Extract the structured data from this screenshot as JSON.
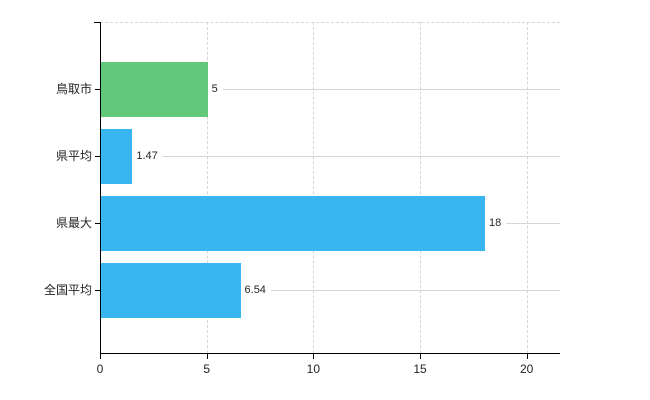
{
  "chart_data": {
    "type": "bar",
    "orientation": "horizontal",
    "title": "",
    "categories": [
      "鳥取市",
      "県平均",
      "県最大",
      "全国平均"
    ],
    "values": [
      5,
      1.47,
      18,
      6.54
    ],
    "value_labels": [
      "5",
      "1.47",
      "18",
      "6.54"
    ],
    "bar_colors": [
      "#62c87c",
      "#38b6f0",
      "#38b6f0",
      "#38b6f0"
    ],
    "xticks": [
      0,
      5,
      10,
      15,
      20
    ],
    "xtick_labels": [
      "0",
      "5",
      "10",
      "15",
      "20"
    ],
    "xlim": [
      0,
      21.6
    ],
    "legend": "none",
    "grid": {
      "vertical_gridlines": "dashed",
      "horizontal_gridlines": "solid",
      "plot_top_border": "dashed"
    },
    "colors": {
      "accent_blue": "#38b6f0",
      "accent_green": "#62c87c",
      "gridline": "#d6d6d6",
      "axis": "#000000",
      "text": "#242424",
      "background": "#ffffff"
    }
  }
}
